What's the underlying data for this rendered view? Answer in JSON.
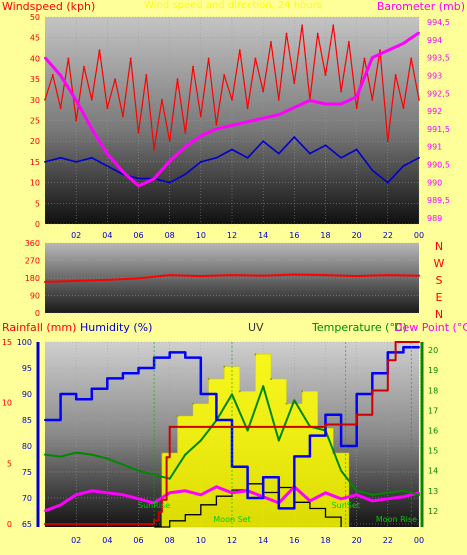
{
  "colors": {
    "background": "#ffff99",
    "wind": "#ff0000",
    "gust_avg": "#0000cc",
    "barometer": "#ff00ff",
    "direction": "#ff0000",
    "rain": "#cc0000",
    "humidity": "#0000ff",
    "uv": "#ffff00",
    "temperature": "#008800",
    "dewpoint": "#ff00ff",
    "solar": "#000000",
    "axis_left": "#ff0000",
    "axis_right": "#ff00ff",
    "axis_humidity": "#0000cc",
    "axis_temp": "#008800",
    "tick_x": "#0000cc"
  },
  "header": {
    "title": "Wind speed and direction, 24 hours"
  },
  "chart_data": [
    {
      "type": "line",
      "name": "wind-barometer",
      "ylabel": "Windspeed (kph)",
      "y2label": "Barometer (mb)",
      "ylim": [
        0,
        50
      ],
      "y2lim": [
        989,
        994.5
      ],
      "yticks": [
        "0",
        "5",
        "10",
        "15",
        "20",
        "25",
        "30",
        "35",
        "40",
        "45",
        "50"
      ],
      "y2ticks": [
        "989",
        "989,5",
        "990",
        "990,5",
        "991",
        "991,5",
        "992",
        "992,5",
        "993",
        "993,5",
        "994",
        "994,5"
      ],
      "xticks": [
        "02",
        "04",
        "06",
        "08",
        "10",
        "12",
        "14",
        "16",
        "18",
        "20",
        "22",
        "00"
      ],
      "series": [
        {
          "role": "wind",
          "x": [
            0,
            0.5,
            1,
            1.5,
            2,
            2.5,
            3,
            3.5,
            4,
            4.5,
            5,
            5.5,
            6,
            6.5,
            7,
            7.5,
            8,
            8.5,
            9,
            9.5,
            10,
            10.5,
            11,
            11.5,
            12,
            12.5,
            13,
            13.5,
            14,
            14.5,
            15,
            15.5,
            16,
            16.5,
            17,
            17.5,
            18,
            18.5,
            19,
            19.5,
            20,
            20.5,
            21,
            21.5,
            22,
            22.5,
            23,
            23.5,
            24
          ],
          "values": [
            30,
            36,
            28,
            40,
            25,
            38,
            30,
            42,
            28,
            35,
            26,
            40,
            22,
            36,
            18,
            30,
            20,
            35,
            22,
            38,
            26,
            40,
            24,
            36,
            30,
            42,
            28,
            40,
            32,
            44,
            30,
            46,
            34,
            48,
            30,
            46,
            36,
            48,
            32,
            44,
            28,
            40,
            30,
            42,
            20,
            36,
            28,
            40,
            30
          ]
        },
        {
          "role": "gust_avg",
          "x": [
            0,
            1,
            2,
            3,
            4,
            5,
            6,
            7,
            8,
            9,
            10,
            11,
            12,
            13,
            14,
            15,
            16,
            17,
            18,
            19,
            20,
            21,
            22,
            23,
            24
          ],
          "values": [
            15,
            16,
            15,
            16,
            14,
            12,
            11,
            11,
            10,
            12,
            15,
            16,
            18,
            16,
            20,
            17,
            21,
            17,
            19,
            16,
            18,
            13,
            10,
            14,
            16
          ]
        },
        {
          "role": "barometer",
          "axis": "right",
          "x": [
            0,
            1,
            2,
            3,
            4,
            5,
            6,
            7,
            8,
            9,
            10,
            11,
            12,
            13,
            14,
            15,
            16,
            17,
            18,
            19,
            20,
            21,
            22,
            23,
            24
          ],
          "values": [
            993.5,
            993.0,
            992.3,
            991.5,
            990.8,
            990.3,
            989.9,
            990.1,
            990.6,
            991.0,
            991.3,
            991.5,
            991.6,
            991.7,
            991.8,
            991.9,
            992.1,
            992.3,
            992.2,
            992.2,
            992.4,
            993.5,
            993.7,
            993.9,
            994.2
          ]
        }
      ]
    },
    {
      "type": "line",
      "name": "wind-direction",
      "ylim": [
        0,
        360
      ],
      "yticks": [
        "0",
        "90",
        "180",
        "270",
        "360"
      ],
      "compass": [
        "N",
        "W",
        "S",
        "E",
        "N"
      ],
      "series": [
        {
          "role": "direction",
          "x": [
            0,
            2,
            4,
            6,
            8,
            10,
            12,
            14,
            16,
            18,
            20,
            22,
            24
          ],
          "values": [
            160,
            165,
            170,
            178,
            195,
            190,
            195,
            192,
            198,
            195,
            190,
            195,
            192
          ]
        }
      ]
    },
    {
      "type": "line",
      "name": "rain-humidity-uv-temp",
      "labels": {
        "rainfall": "Rainfall (mm)",
        "humidity": "Humidity (%)",
        "uv": "UV",
        "temperature": "Temperature (°C)",
        "dewpoint": "Dew Point (°C)"
      },
      "rain_lim": [
        0,
        15
      ],
      "rain_ticks": [
        "0",
        "5",
        "10",
        "15"
      ],
      "hum_lim": [
        65,
        100
      ],
      "hum_ticks": [
        "65",
        "70",
        "75",
        "80",
        "85",
        "90",
        "95",
        "100"
      ],
      "temp_lim": [
        11.2,
        20.4
      ],
      "temp_ticks": [
        "12",
        "13",
        "14",
        "15",
        "16",
        "17",
        "18",
        "19",
        "20"
      ],
      "xticks": [
        "02",
        "04",
        "06",
        "08",
        "10",
        "12",
        "14",
        "16",
        "18",
        "20",
        "22",
        "00"
      ],
      "annotations": [
        {
          "text": "SunRise",
          "x": 7.0
        },
        {
          "text": "Moon Set",
          "x": 12.0
        },
        {
          "text": "SunSet",
          "x": 19.3
        },
        {
          "text": "Moon Rise",
          "x": 23.5
        }
      ],
      "series": [
        {
          "role": "humidity",
          "step": true,
          "x": [
            0,
            1,
            2,
            3,
            4,
            5,
            6,
            7,
            8,
            9,
            10,
            11,
            12,
            13,
            14,
            15,
            16,
            17,
            18,
            19,
            20,
            21,
            22,
            23,
            24
          ],
          "values": [
            85,
            90,
            89,
            91,
            93,
            94,
            95,
            97,
            98,
            97,
            90,
            85,
            76,
            70,
            74,
            68,
            78,
            82,
            86,
            80,
            90,
            94,
            98,
            99,
            99
          ]
        },
        {
          "role": "rain",
          "step": true,
          "x": [
            0,
            6.8,
            7.0,
            7.3,
            7.5,
            7.8,
            8.0,
            12.0,
            16.0,
            18.0,
            20.0,
            21.0,
            22.0,
            22.5,
            23.0,
            24.0
          ],
          "values": [
            0,
            0,
            0.3,
            1.0,
            2.0,
            5.5,
            8.0,
            8.0,
            8.0,
            8.2,
            9.0,
            11.0,
            13.5,
            15.0,
            15.0,
            15.0
          ]
        },
        {
          "role": "uv",
          "step": true,
          "x": [
            7.5,
            8.5,
            9.5,
            10.5,
            11.5,
            12.5,
            13.5,
            14.5,
            15.5,
            16.5,
            17.5,
            18.5
          ],
          "values": [
            6,
            9,
            10,
            12,
            13,
            11,
            14,
            12,
            10,
            11,
            8,
            6
          ]
        },
        {
          "role": "temperature",
          "x": [
            0,
            1,
            2,
            3,
            4,
            5,
            6,
            7,
            8,
            9,
            10,
            11,
            12,
            13,
            14,
            15,
            16,
            17,
            18,
            19,
            20,
            21,
            22,
            23,
            24
          ],
          "values": [
            14.8,
            14.7,
            14.9,
            14.8,
            14.6,
            14.3,
            14.0,
            13.8,
            13.6,
            14.8,
            15.5,
            16.5,
            17.8,
            16.0,
            18.2,
            15.5,
            17.5,
            16.2,
            16.0,
            14.0,
            13.0,
            12.8,
            12.9,
            13.0,
            12.8
          ]
        },
        {
          "role": "dewpoint",
          "x": [
            0,
            1,
            2,
            3,
            4,
            5,
            6,
            7,
            8,
            9,
            10,
            11,
            12,
            13,
            14,
            15,
            16,
            17,
            18,
            19,
            20,
            21,
            22,
            23,
            24
          ],
          "values": [
            12.0,
            12.3,
            12.8,
            13.0,
            12.9,
            12.8,
            12.6,
            12.4,
            12.9,
            13.0,
            12.8,
            13.2,
            12.9,
            13.0,
            12.7,
            12.4,
            13.2,
            12.5,
            12.9,
            12.6,
            12.8,
            12.5,
            12.6,
            12.7,
            12.9
          ]
        },
        {
          "role": "solar",
          "x": [
            7,
            8,
            9,
            10,
            11,
            12,
            13,
            14,
            15,
            16,
            17,
            18,
            19
          ],
          "values": [
            0,
            0.5,
            1.0,
            1.8,
            2.5,
            3.0,
            3.5,
            2.8,
            3.2,
            2.0,
            1.5,
            0.8,
            0
          ]
        }
      ]
    }
  ]
}
